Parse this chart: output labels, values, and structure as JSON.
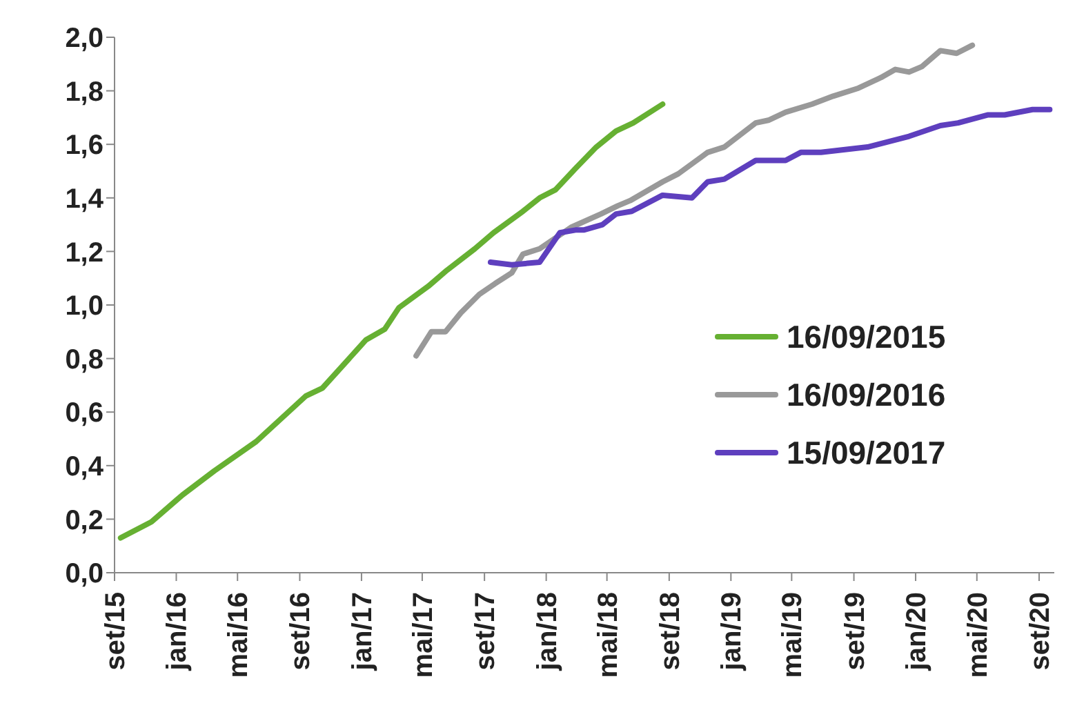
{
  "chart_data": {
    "type": "line",
    "legend": "right",
    "line_style": "solid",
    "marker": "none",
    "grid": false,
    "xlim": [
      "2015-09",
      "2020-10"
    ],
    "xticks": [
      {
        "value": "2015-09",
        "label": "set/15"
      },
      {
        "value": "2016-01",
        "label": "jan/16"
      },
      {
        "value": "2016-05",
        "label": "mai/16"
      },
      {
        "value": "2016-09",
        "label": "set/16"
      },
      {
        "value": "2017-01",
        "label": "jan/17"
      },
      {
        "value": "2017-05",
        "label": "mai/17"
      },
      {
        "value": "2017-09",
        "label": "set/17"
      },
      {
        "value": "2018-01",
        "label": "jan/18"
      },
      {
        "value": "2018-05",
        "label": "mai/18"
      },
      {
        "value": "2018-09",
        "label": "set/18"
      },
      {
        "value": "2019-01",
        "label": "jan/19"
      },
      {
        "value": "2019-05",
        "label": "mai/19"
      },
      {
        "value": "2019-09",
        "label": "set/19"
      },
      {
        "value": "2020-01",
        "label": "jan/20"
      },
      {
        "value": "2020-05",
        "label": "mai/20"
      },
      {
        "value": "2020-09",
        "label": "set/20"
      }
    ],
    "ylim": [
      0,
      2
    ],
    "yticks": [
      {
        "value": 0,
        "label": "0,0"
      },
      {
        "value": 0.2,
        "label": "0,2"
      },
      {
        "value": 0.4,
        "label": "0,4"
      },
      {
        "value": 0.6,
        "label": "0,6"
      },
      {
        "value": 0.8,
        "label": "0,8"
      },
      {
        "value": 1,
        "label": "1,0"
      },
      {
        "value": 1.2,
        "label": "1,2"
      },
      {
        "value": 1.4,
        "label": "1,4"
      },
      {
        "value": 1.6,
        "label": "1,6"
      },
      {
        "value": 1.8,
        "label": "1,8"
      },
      {
        "value": 2,
        "label": "2,0"
      }
    ],
    "series": [
      {
        "name": "16/09/2015",
        "color": "#66b032",
        "x": [
          "2015-09-13",
          "2015-11-13",
          "2016-01-13",
          "2016-03-16",
          "2016-06-07",
          "2016-09-13",
          "2016-10-16",
          "2017-01-10",
          "2017-02-16",
          "2017-03-16",
          "2017-05-13",
          "2017-06-19",
          "2017-08-13",
          "2017-09-19",
          "2017-11-16",
          "2017-12-19",
          "2018-01-19",
          "2018-02-28",
          "2018-04-10",
          "2018-05-19",
          "2018-06-22",
          "2018-08-19"
        ],
        "values": [
          0.13,
          0.19,
          0.29,
          0.38,
          0.49,
          0.66,
          0.69,
          0.87,
          0.91,
          0.99,
          1.07,
          1.13,
          1.21,
          1.27,
          1.35,
          1.4,
          1.43,
          1.51,
          1.59,
          1.65,
          1.68,
          1.75
        ]
      },
      {
        "name": "16/09/2016",
        "color": "#999999",
        "x": [
          "2017-04-19",
          "2017-05-19",
          "2017-06-16",
          "2017-07-16",
          "2017-08-22",
          "2017-09-22",
          "2017-10-25",
          "2017-11-16",
          "2017-12-19",
          "2018-01-19",
          "2018-02-19",
          "2018-04-19",
          "2018-05-22",
          "2018-06-16",
          "2018-08-19",
          "2018-09-19",
          "2018-11-16",
          "2018-12-19",
          "2019-02-19",
          "2019-03-16",
          "2019-04-19",
          "2019-06-10",
          "2019-07-22",
          "2019-09-10",
          "2019-10-25",
          "2019-11-22",
          "2019-12-19",
          "2020-01-13",
          "2020-02-19",
          "2020-03-22",
          "2020-04-22"
        ],
        "values": [
          0.81,
          0.9,
          0.9,
          0.97,
          1.04,
          1.08,
          1.12,
          1.19,
          1.21,
          1.25,
          1.29,
          1.34,
          1.37,
          1.39,
          1.46,
          1.49,
          1.57,
          1.59,
          1.68,
          1.69,
          1.72,
          1.75,
          1.78,
          1.81,
          1.85,
          1.88,
          1.87,
          1.89,
          1.95,
          1.94,
          1.97
        ]
      },
      {
        "name": "15/09/2017",
        "color": "#5e3fbe",
        "x": [
          "2017-09-13",
          "2017-10-25",
          "2017-12-19",
          "2018-01-28",
          "2018-02-28",
          "2018-03-16",
          "2018-04-22",
          "2018-05-19",
          "2018-06-19",
          "2018-08-19",
          "2018-10-16",
          "2018-11-16",
          "2018-12-19",
          "2019-02-19",
          "2019-04-19",
          "2019-05-19",
          "2019-06-28",
          "2019-09-28",
          "2019-12-19",
          "2020-02-19",
          "2020-03-25",
          "2020-05-22",
          "2020-06-25",
          "2020-08-19",
          "2020-09-22"
        ],
        "values": [
          1.16,
          1.15,
          1.16,
          1.27,
          1.28,
          1.28,
          1.3,
          1.34,
          1.35,
          1.41,
          1.4,
          1.46,
          1.47,
          1.54,
          1.54,
          1.57,
          1.57,
          1.59,
          1.63,
          1.67,
          1.68,
          1.71,
          1.71,
          1.73,
          1.73
        ]
      }
    ]
  }
}
